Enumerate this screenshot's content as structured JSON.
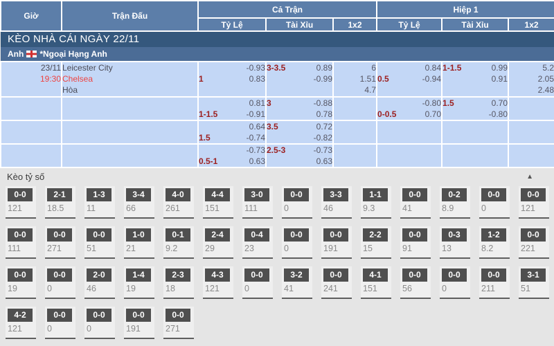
{
  "header": {
    "col_time": "Giờ",
    "col_match": "Trận Đấu",
    "group_full": "Cả Trận",
    "group_half": "Hiệp 1",
    "sub_rate": "Tỷ Lệ",
    "sub_ou": "Tài Xỉu",
    "sub_1x2": "1x2"
  },
  "banner": "KÈO NHÀ CÁI NGÀY 22/11",
  "league": {
    "country": "Anh",
    "flag": "england-flag",
    "name": "*Ngoại Hạng Anh"
  },
  "match": {
    "date": "23/11",
    "time": "19:30",
    "home": "Leicester City",
    "away": "Chelsea",
    "draw_label": "Hòa"
  },
  "odds_rows": [
    {
      "cells": [
        {
          "tl": "",
          "tr": "-0.93",
          "bl": "1",
          "br": "0.83"
        },
        {
          "tl": "3-3.5",
          "tr": "0.89",
          "bl": "",
          "br": "-0.99"
        },
        {
          "lines": [
            "6",
            "1.51",
            "4.7"
          ]
        },
        {
          "tl": "",
          "tr": "0.84",
          "bl": "0.5",
          "br": "-0.94"
        },
        {
          "tl": "1-1.5",
          "tr": "0.99",
          "bl": "",
          "br": "0.91"
        },
        {
          "lines": [
            "5.2",
            "2.05",
            "2.48"
          ]
        }
      ]
    },
    {
      "cells": [
        {
          "tl": "",
          "tr": "0.81",
          "bl": "1-1.5",
          "br": "-0.91"
        },
        {
          "tl": "3",
          "tr": "-0.88",
          "bl": "",
          "br": "0.78"
        },
        {
          "lines": []
        },
        {
          "tl": "",
          "tr": "-0.80",
          "bl": "0-0.5",
          "br": "0.70"
        },
        {
          "tl": "1.5",
          "tr": "0.70",
          "bl": "",
          "br": "-0.80"
        },
        {
          "lines": []
        }
      ]
    },
    {
      "cells": [
        {
          "tl": "",
          "tr": "0.64",
          "bl": "1.5",
          "br": "-0.74"
        },
        {
          "tl": "3.5",
          "tr": "0.72",
          "bl": "",
          "br": "-0.82"
        },
        {
          "lines": []
        },
        {},
        {},
        {}
      ]
    },
    {
      "cells": [
        {
          "tl": "",
          "tr": "-0.73",
          "bl": "0.5-1",
          "br": "0.63"
        },
        {
          "tl": "2.5-3",
          "tr": "-0.73",
          "bl": "",
          "br": "0.63"
        },
        {
          "lines": []
        },
        {},
        {},
        {}
      ]
    }
  ],
  "score_section": {
    "title": "Kèo tỷ số",
    "collapse_icon": "▲",
    "rows": [
      [
        {
          "score": "0-0",
          "odds": "121"
        },
        {
          "score": "2-1",
          "odds": "18.5"
        },
        {
          "score": "1-3",
          "odds": "11"
        },
        {
          "score": "3-4",
          "odds": "66"
        },
        {
          "score": "4-0",
          "odds": "261"
        },
        {
          "score": "4-4",
          "odds": "151"
        },
        {
          "score": "3-0",
          "odds": "111"
        },
        {
          "score": "0-0",
          "odds": "0"
        },
        {
          "score": "3-3",
          "odds": "46"
        },
        {
          "score": "1-1",
          "odds": "9.3"
        },
        {
          "score": "0-0",
          "odds": "41"
        },
        {
          "score": "0-2",
          "odds": "8.9"
        },
        {
          "score": "0-0",
          "odds": "0"
        },
        {
          "score": "0-0",
          "odds": "121"
        }
      ],
      [
        {
          "score": "0-0",
          "odds": "111"
        },
        {
          "score": "0-0",
          "odds": "271"
        },
        {
          "score": "0-0",
          "odds": "51"
        },
        {
          "score": "1-0",
          "odds": "21"
        },
        {
          "score": "0-1",
          "odds": "9.2"
        },
        {
          "score": "2-4",
          "odds": "29"
        },
        {
          "score": "0-4",
          "odds": "23"
        },
        {
          "score": "0-0",
          "odds": "0"
        },
        {
          "score": "0-0",
          "odds": "191"
        },
        {
          "score": "2-2",
          "odds": "15"
        },
        {
          "score": "0-0",
          "odds": "91"
        },
        {
          "score": "0-3",
          "odds": "13"
        },
        {
          "score": "1-2",
          "odds": "8.2"
        },
        {
          "score": "0-0",
          "odds": "221"
        }
      ],
      [
        {
          "score": "0-0",
          "odds": "19"
        },
        {
          "score": "0-0",
          "odds": "0"
        },
        {
          "score": "2-0",
          "odds": "46"
        },
        {
          "score": "1-4",
          "odds": "19"
        },
        {
          "score": "2-3",
          "odds": "18"
        },
        {
          "score": "4-3",
          "odds": "121"
        },
        {
          "score": "0-0",
          "odds": "0"
        },
        {
          "score": "3-2",
          "odds": "41"
        },
        {
          "score": "0-0",
          "odds": "241"
        },
        {
          "score": "4-1",
          "odds": "151"
        },
        {
          "score": "0-0",
          "odds": "56"
        },
        {
          "score": "0-0",
          "odds": "0"
        },
        {
          "score": "0-0",
          "odds": "211"
        },
        {
          "score": "3-1",
          "odds": "51"
        }
      ],
      [
        {
          "score": "4-2",
          "odds": "121"
        },
        {
          "score": "0-0",
          "odds": "0"
        },
        {
          "score": "0-0",
          "odds": "0"
        },
        {
          "score": "0-0",
          "odds": "191"
        },
        {
          "score": "0-0",
          "odds": "271"
        }
      ]
    ]
  }
}
